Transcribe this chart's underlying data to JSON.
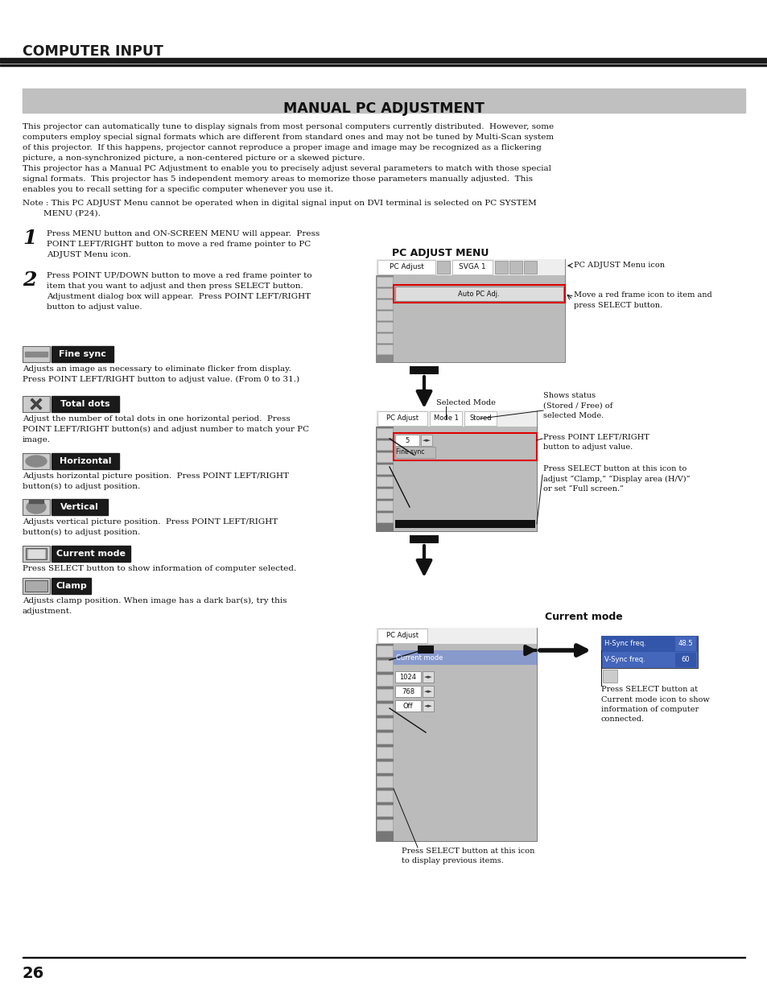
{
  "bg": "#ffffff",
  "header_text": "COMPUTER INPUT",
  "section_title": "MANUAL PC ADJUSTMENT",
  "body1_lines": [
    "This projector can automatically tune to display signals from most personal computers currently distributed.  However, some",
    "computers employ special signal formats which are different from standard ones and may not be tuned by Multi-Scan system",
    "of this projector.  If this happens, projector cannot reproduce a proper image and image may be recognized as a flickering",
    "picture, a non-synchronized picture, a non-centered picture or a skewed picture.",
    "This projector has a Manual PC Adjustment to enable you to precisely adjust several parameters to match with those special",
    "signal formats.  This projector has 5 independent memory areas to memorize those parameters manually adjusted.  This",
    "enables you to recall setting for a specific computer whenever you use it."
  ],
  "note_lines": [
    "Note : This PC ADJUST Menu cannot be operated when in digital signal input on DVI terminal is selected on PC SYSTEM",
    "        MENU (P24)."
  ],
  "step1": "Press MENU button and ON-SCREEN MENU will appear.  Press\nPOINT LEFT/RIGHT button to move a red frame pointer to PC\nADJUST Menu icon.",
  "step2": "Press POINT UP/DOWN button to move a red frame pointer to\nitem that you want to adjust and then press SELECT button.\nAdjustment dialog box will appear.  Press POINT LEFT/RIGHT\nbutton to adjust value.",
  "item_labels": [
    "Fine sync",
    "Total dots",
    "Horizontal",
    "Vertical",
    "Current mode",
    "Clamp"
  ],
  "item_descs": [
    "Adjusts an image as necessary to eliminate flicker from display.\nPress POINT LEFT/RIGHT button to adjust value. (From 0 to 31.)",
    "Adjust the number of total dots in one horizontal period.  Press\nPOINT LEFT/RIGHT button(s) and adjust number to match your PC\nimage.",
    "Adjusts horizontal picture position.  Press POINT LEFT/RIGHT\nbutton(s) to adjust position.",
    "Adjusts vertical picture position.  Press POINT LEFT/RIGHT\nbutton(s) to adjust position.",
    "Press SELECT button to show information of computer selected.",
    "Adjusts clamp position. When image has a dark bar(s), try this\nadjustment."
  ],
  "page_num": "26",
  "lmargin": 28,
  "rmargin": 930,
  "col_split": 460
}
